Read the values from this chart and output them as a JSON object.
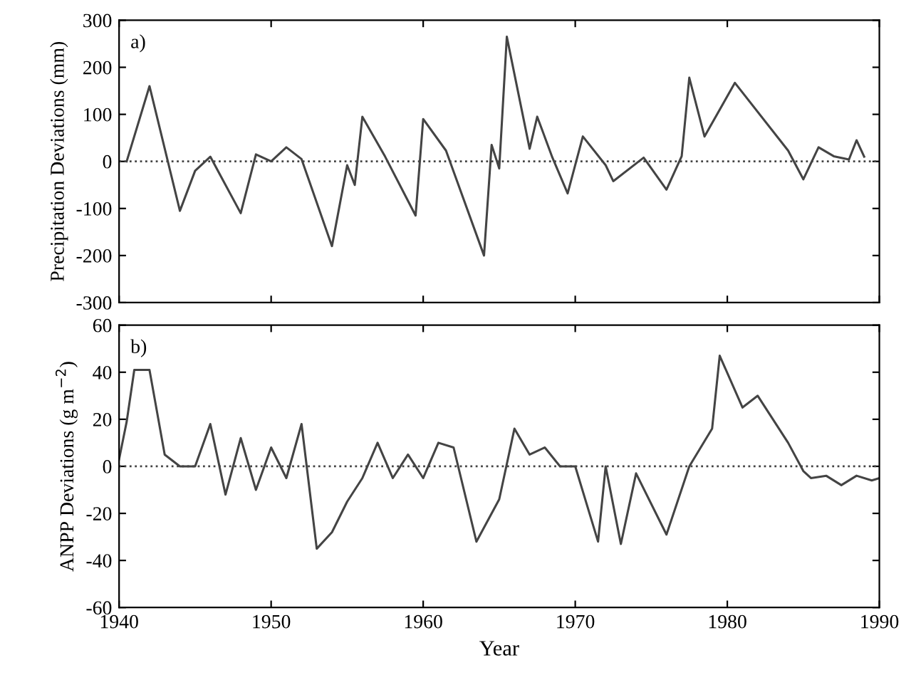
{
  "chart_data": [
    {
      "type": "line",
      "ylabel": "Precipitation Deviations (mm)",
      "annotations": [
        "a)"
      ],
      "x": [
        1940.5,
        1942,
        1944,
        1945,
        1946,
        1948,
        1949,
        1950,
        1951,
        1952,
        1954,
        1955,
        1955.5,
        1956,
        1957.5,
        1959.5,
        1960,
        1961.5,
        1964,
        1964.5,
        1965,
        1965.5,
        1967,
        1967.5,
        1968.5,
        1969.5,
        1970.5,
        1972,
        1972.5,
        1974.5,
        1976,
        1977,
        1977.5,
        1978.5,
        1980.5,
        1984,
        1985,
        1986,
        1987,
        1988,
        1988.5,
        1989
      ],
      "series": [
        {
          "color": "#444444",
          "values": [
            0,
            160,
            -105,
            -20,
            10,
            -110,
            15,
            0,
            30,
            5,
            -180,
            -8,
            -50,
            95,
            10,
            -115,
            90,
            23,
            -200,
            35,
            -15,
            265,
            27,
            95,
            8,
            -68,
            53,
            -8,
            -42,
            8,
            -60,
            11,
            178,
            53,
            167,
            23,
            -38,
            30,
            11,
            4,
            45,
            10
          ]
        }
      ],
      "xlim": [
        1940,
        1990
      ],
      "xticks": [
        1940,
        1950,
        1960,
        1970,
        1980,
        1990
      ],
      "ylim": [
        -300,
        300
      ],
      "yticks": [
        -300,
        -200,
        -100,
        0,
        100,
        200,
        300
      ],
      "tick_labels": "y",
      "ref_lines": [
        {
          "axis": "y",
          "value": 0,
          "line_style": "dotted",
          "color": "#444444"
        }
      ],
      "line_style": "solid",
      "grid": false,
      "legend": false
    },
    {
      "type": "line",
      "xlabel": "Year",
      "ylabel": "ANPP Deviations (g m$^{−2}$)",
      "annotations": [
        "b)"
      ],
      "x": [
        1940,
        1940.5,
        1941,
        1942,
        1943,
        1944,
        1945,
        1946,
        1947,
        1948,
        1949,
        1950,
        1951,
        1952,
        1953,
        1954,
        1955,
        1956,
        1957,
        1958,
        1959,
        1960,
        1961,
        1962,
        1963.5,
        1965,
        1966,
        1967,
        1968,
        1969,
        1970,
        1971.5,
        1972,
        1973,
        1974,
        1976,
        1977.5,
        1979,
        1979.5,
        1981,
        1982,
        1983,
        1984,
        1985,
        1985.5,
        1986.5,
        1987.5,
        1988.5,
        1989.5,
        1990
      ],
      "series": [
        {
          "color": "#444444",
          "values": [
            3,
            19,
            41,
            41,
            5,
            0,
            0,
            18,
            -12,
            12,
            -10,
            8,
            -5,
            18,
            -35,
            -28,
            -15,
            -5,
            10,
            -5,
            5,
            -5,
            10,
            8,
            -32,
            -14,
            16,
            5,
            8,
            0,
            0,
            -32,
            0,
            -33,
            -3,
            -29,
            0,
            16,
            47,
            25,
            30,
            20,
            10,
            -2,
            -5,
            -4,
            -8,
            -4,
            -6,
            -5
          ]
        }
      ],
      "xlim": [
        1940,
        1990
      ],
      "xticks": [
        1940,
        1950,
        1960,
        1970,
        1980,
        1990
      ],
      "ylim": [
        -60,
        60
      ],
      "yticks": [
        -60,
        -40,
        -20,
        0,
        20,
        40,
        60
      ],
      "ref_lines": [
        {
          "axis": "y",
          "value": 0,
          "line_style": "dotted",
          "color": "#444444"
        }
      ],
      "line_style": "solid",
      "grid": false,
      "legend": false
    }
  ]
}
